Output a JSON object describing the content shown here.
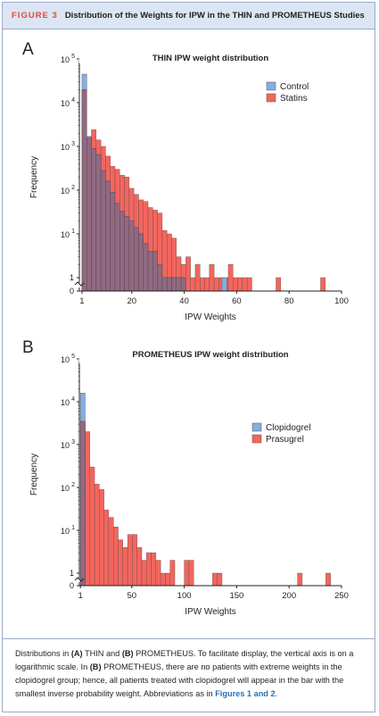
{
  "figure": {
    "label": "FIGURE 3",
    "title": "Distribution of the Weights for IPW in the THIN and PROMETHEUS Studies"
  },
  "caption": {
    "p1": "Distributions in ",
    "a_tag": "(A)",
    "p2": " THIN and ",
    "b_tag": "(B)",
    "p3": " PROMETHEUS. To facilitate display, the vertical axis is on a logarithmic scale. In ",
    "b_tag2": "(B)",
    "p4": " PROMETHEUS, there are no patients with extreme weights in the clopidogrel group; hence, all patients treated with clopidogrel will appear in the bar with the smallest inverse probability weight. Abbreviations as in ",
    "link": "Figures 1 and 2",
    "p5": "."
  },
  "chart_data": [
    {
      "panel": "A",
      "type": "bar",
      "title": "THIN IPW weight distribution",
      "xlabel": "IPW Weights",
      "ylabel": "Frequency",
      "yscale": "log",
      "xlim": [
        0,
        100
      ],
      "xticks": [
        1,
        20,
        40,
        60,
        80,
        100
      ],
      "ytick_labels": [
        "0",
        "1",
        "10^1",
        "10^2",
        "10^3",
        "10^4",
        "10^5"
      ],
      "legend_position": "top-right",
      "colors": {
        "Control": "#7fb1e3",
        "Statins": "#f2665e",
        "overlap": "#8f6a80"
      },
      "bin_width": 1.8,
      "series": [
        {
          "name": "Control",
          "bins": [
            {
              "x0": 1.0,
              "count": 45000
            },
            {
              "x0": 2.8,
              "count": 1700
            },
            {
              "x0": 4.6,
              "count": 900
            },
            {
              "x0": 6.4,
              "count": 650
            },
            {
              "x0": 8.2,
              "count": 280
            },
            {
              "x0": 10.0,
              "count": 160
            },
            {
              "x0": 11.8,
              "count": 90
            },
            {
              "x0": 13.6,
              "count": 50
            },
            {
              "x0": 15.4,
              "count": 33
            },
            {
              "x0": 17.2,
              "count": 25
            },
            {
              "x0": 19.0,
              "count": 20
            },
            {
              "x0": 20.8,
              "count": 14
            },
            {
              "x0": 22.6,
              "count": 10
            },
            {
              "x0": 24.4,
              "count": 6
            },
            {
              "x0": 26.2,
              "count": 4
            },
            {
              "x0": 28.0,
              "count": 4
            },
            {
              "x0": 29.8,
              "count": 2
            },
            {
              "x0": 31.6,
              "count": 1
            },
            {
              "x0": 33.4,
              "count": 1
            },
            {
              "x0": 35.2,
              "count": 1
            },
            {
              "x0": 37.0,
              "count": 1
            },
            {
              "x0": 38.8,
              "count": 1
            },
            {
              "x0": 54.4,
              "count": 1
            }
          ]
        },
        {
          "name": "Statins",
          "bins": [
            {
              "x0": 1.0,
              "count": 20000
            },
            {
              "x0": 2.8,
              "count": 1600
            },
            {
              "x0": 4.6,
              "count": 2400
            },
            {
              "x0": 6.4,
              "count": 1400
            },
            {
              "x0": 8.2,
              "count": 1000
            },
            {
              "x0": 10.0,
              "count": 600
            },
            {
              "x0": 11.8,
              "count": 350
            },
            {
              "x0": 13.6,
              "count": 300
            },
            {
              "x0": 15.4,
              "count": 220
            },
            {
              "x0": 17.2,
              "count": 200
            },
            {
              "x0": 19.0,
              "count": 110
            },
            {
              "x0": 20.8,
              "count": 80
            },
            {
              "x0": 22.6,
              "count": 60
            },
            {
              "x0": 24.4,
              "count": 55
            },
            {
              "x0": 26.2,
              "count": 40
            },
            {
              "x0": 28.0,
              "count": 35
            },
            {
              "x0": 29.8,
              "count": 30
            },
            {
              "x0": 31.6,
              "count": 12
            },
            {
              "x0": 33.4,
              "count": 10
            },
            {
              "x0": 35.2,
              "count": 8
            },
            {
              "x0": 37.0,
              "count": 3
            },
            {
              "x0": 38.8,
              "count": 2
            },
            {
              "x0": 40.6,
              "count": 3
            },
            {
              "x0": 42.4,
              "count": 1
            },
            {
              "x0": 44.2,
              "count": 2
            },
            {
              "x0": 46.0,
              "count": 1
            },
            {
              "x0": 47.8,
              "count": 1
            },
            {
              "x0": 49.6,
              "count": 2
            },
            {
              "x0": 51.4,
              "count": 1
            },
            {
              "x0": 53.2,
              "count": 1
            },
            {
              "x0": 55.0,
              "count": 1
            },
            {
              "x0": 56.8,
              "count": 2
            },
            {
              "x0": 58.6,
              "count": 1
            },
            {
              "x0": 60.4,
              "count": 1
            },
            {
              "x0": 62.2,
              "count": 1
            },
            {
              "x0": 64.0,
              "count": 1
            },
            {
              "x0": 75.0,
              "count": 1
            },
            {
              "x0": 92.0,
              "count": 1
            }
          ]
        }
      ]
    },
    {
      "panel": "B",
      "type": "bar",
      "title": "PROMETHEUS IPW weight distribution",
      "xlabel": "IPW Weights",
      "ylabel": "Frequency",
      "yscale": "log",
      "xlim": [
        0,
        250
      ],
      "xticks": [
        1,
        50,
        100,
        150,
        200,
        250
      ],
      "ytick_labels": [
        "0",
        "1",
        "10^1",
        "10^2",
        "10^3",
        "10^4",
        "10^5"
      ],
      "legend_position": "center-right",
      "colors": {
        "Clopidogrel": "#7fb1e3",
        "Prasugrel": "#f2665e",
        "overlap": "#8f6a80"
      },
      "bin_width": 4.5,
      "series": [
        {
          "name": "Clopidogrel",
          "bins": [
            {
              "x0": 1.0,
              "count": 16000
            }
          ]
        },
        {
          "name": "Prasugrel",
          "bins": [
            {
              "x0": 1.0,
              "count": 3500
            },
            {
              "x0": 5.5,
              "count": 2000
            },
            {
              "x0": 10.0,
              "count": 300
            },
            {
              "x0": 14.5,
              "count": 120
            },
            {
              "x0": 19.0,
              "count": 90
            },
            {
              "x0": 23.5,
              "count": 30
            },
            {
              "x0": 28.0,
              "count": 20
            },
            {
              "x0": 32.5,
              "count": 12
            },
            {
              "x0": 37.0,
              "count": 6
            },
            {
              "x0": 41.5,
              "count": 4
            },
            {
              "x0": 46.0,
              "count": 8
            },
            {
              "x0": 50.5,
              "count": 8
            },
            {
              "x0": 55.0,
              "count": 4
            },
            {
              "x0": 59.5,
              "count": 2
            },
            {
              "x0": 64.0,
              "count": 3
            },
            {
              "x0": 68.5,
              "count": 3
            },
            {
              "x0": 73.0,
              "count": 2
            },
            {
              "x0": 77.5,
              "count": 1
            },
            {
              "x0": 82.0,
              "count": 1
            },
            {
              "x0": 86.5,
              "count": 2
            },
            {
              "x0": 100.0,
              "count": 2
            },
            {
              "x0": 104.5,
              "count": 2
            },
            {
              "x0": 127.0,
              "count": 1
            },
            {
              "x0": 131.5,
              "count": 1
            },
            {
              "x0": 208.0,
              "count": 1
            },
            {
              "x0": 235.0,
              "count": 1
            }
          ]
        }
      ]
    }
  ]
}
